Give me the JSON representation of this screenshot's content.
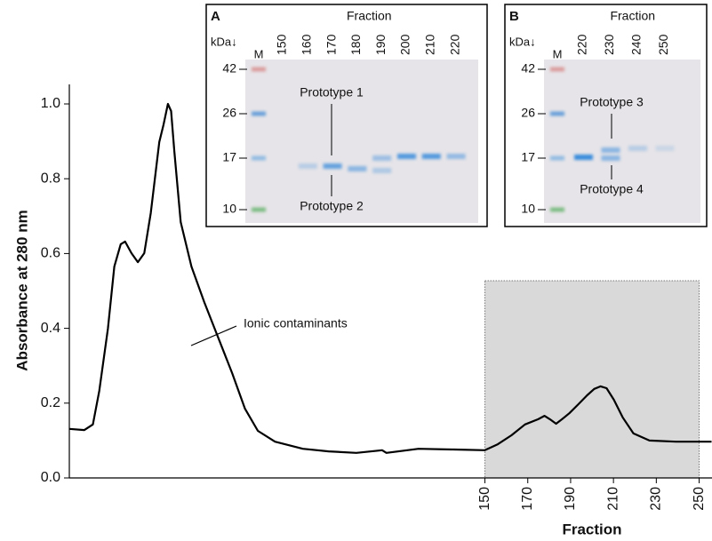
{
  "chart_data": {
    "type": "line",
    "y_label": "Absorbance at 280 nm",
    "x_label": "Fraction",
    "color": "#000000",
    "x": [
      -44,
      -37,
      -33,
      -30,
      -26,
      -23,
      -20,
      -18,
      -15,
      -12,
      -9,
      -6,
      -2,
      0,
      2,
      3.5,
      5,
      8,
      13,
      19,
      25.5,
      32,
      38,
      44,
      52,
      65,
      77,
      90,
      102,
      104,
      119,
      135.5,
      150,
      156,
      162.4,
      168.7,
      174.9,
      177.8,
      180.3,
      183.2,
      186,
      189.4,
      193.6,
      197.7,
      201,
      204,
      206.8,
      210.2,
      214.3,
      219.3,
      226.8,
      239.2,
      255.8
    ],
    "values": [
      0.131,
      0.128,
      0.143,
      0.233,
      0.399,
      0.565,
      0.625,
      0.632,
      0.601,
      0.577,
      0.601,
      0.708,
      0.898,
      0.945,
      1.0,
      0.981,
      0.874,
      0.684,
      0.565,
      0.47,
      0.375,
      0.28,
      0.185,
      0.126,
      0.097,
      0.078,
      0.071,
      0.067,
      0.074,
      0.067,
      0.078,
      0.076,
      0.074,
      0.09,
      0.114,
      0.143,
      0.157,
      0.166,
      0.157,
      0.145,
      0.157,
      0.173,
      0.197,
      0.221,
      0.238,
      0.245,
      0.24,
      0.209,
      0.162,
      0.119,
      0.1,
      0.097,
      0.097
    ],
    "xlim": [
      -44,
      256
    ],
    "xticks": [
      150,
      170,
      190,
      210,
      230,
      250
    ],
    "ylim": [
      0,
      1
    ],
    "yticks": [
      {
        "value": 0,
        "label": "0.0"
      },
      0.2,
      0.4,
      0.6,
      0.8,
      {
        "value": 1,
        "label": "1.0"
      }
    ],
    "shaded_xrange": [
      150,
      250
    ],
    "annotation": "Ionic contaminants",
    "insets": [
      {
        "panel": "A",
        "axis_label": "Fraction",
        "unit_label": "kDa↓",
        "marker_label": "M",
        "lanes": [
          "150",
          "160",
          "170",
          "180",
          "190",
          "200",
          "210",
          "220"
        ],
        "marker_weights": [
          "42",
          "26",
          "17",
          "10"
        ],
        "upper_note": "Prototype 1",
        "lower_note": "Prototype 2"
      },
      {
        "panel": "B",
        "axis_label": "Fraction",
        "unit_label": "kDa↓",
        "marker_label": "M",
        "lanes": [
          "220",
          "230",
          "240",
          "250"
        ],
        "marker_weights": [
          "42",
          "26",
          "17",
          "10"
        ],
        "upper_note": "Prototype 3",
        "lower_note": "Prototype 4"
      }
    ]
  }
}
